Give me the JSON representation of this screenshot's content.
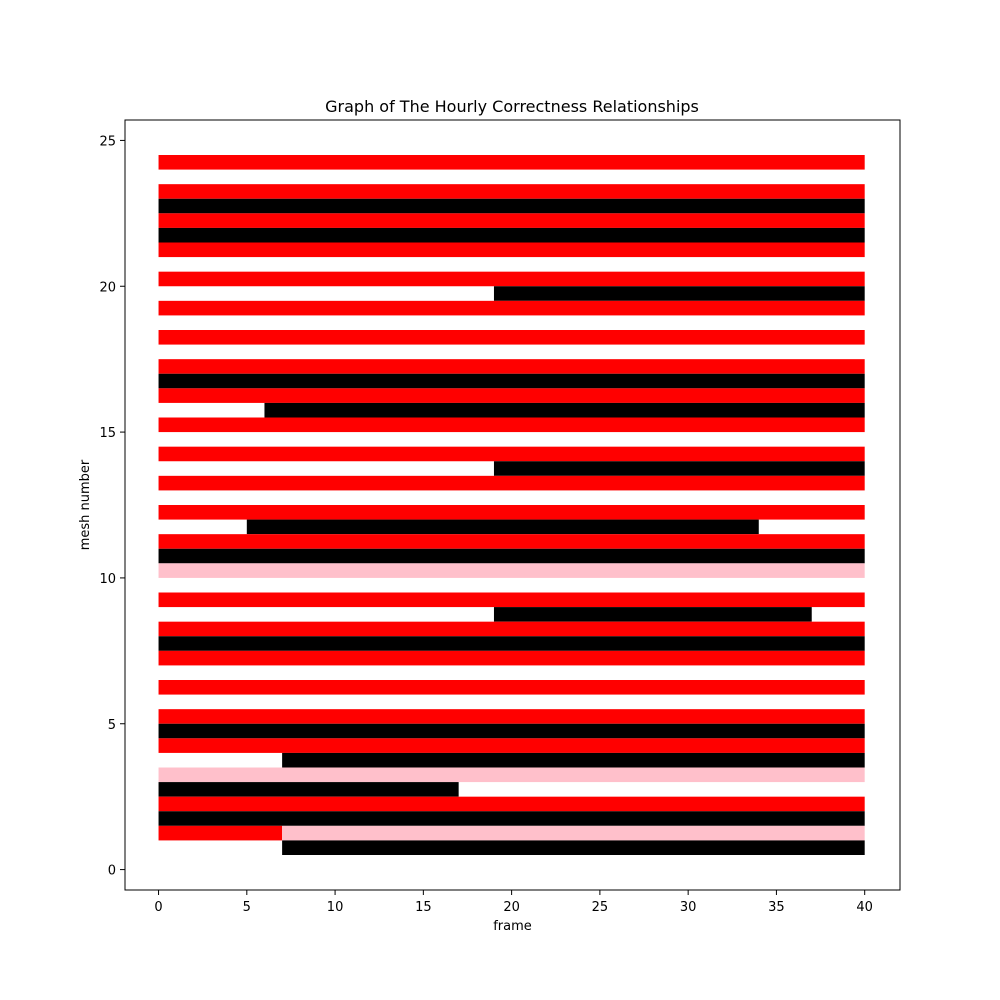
{
  "chart_data": {
    "type": "bar",
    "orientation": "horizontal-segments",
    "title": "Graph of The Hourly Correctness Relationships",
    "xlabel": "frame",
    "ylabel": "mesh number",
    "xlim": [
      -1.9,
      42
    ],
    "ylim": [
      -0.7,
      25.7
    ],
    "xticks": [
      0,
      5,
      10,
      15,
      20,
      25,
      30,
      35,
      40
    ],
    "yticks": [
      0,
      5,
      10,
      15,
      20,
      25
    ],
    "grid": false,
    "bar_height": 0.5,
    "colors": {
      "red": "#ff0000",
      "black": "#000000",
      "pink": "#ffc0cb"
    },
    "segments": [
      {
        "y": 24,
        "start": 0,
        "end": 40,
        "color": "red"
      },
      {
        "y": 23,
        "start": 0,
        "end": 40,
        "color": "red"
      },
      {
        "y": 22.5,
        "start": 0,
        "end": 40,
        "color": "black"
      },
      {
        "y": 22,
        "start": 0,
        "end": 40,
        "color": "red"
      },
      {
        "y": 21.5,
        "start": 0,
        "end": 40,
        "color": "black"
      },
      {
        "y": 21,
        "start": 0,
        "end": 40,
        "color": "red"
      },
      {
        "y": 20,
        "start": 0,
        "end": 40,
        "color": "red"
      },
      {
        "y": 19.5,
        "start": 19,
        "end": 40,
        "color": "black"
      },
      {
        "y": 19,
        "start": 0,
        "end": 40,
        "color": "red"
      },
      {
        "y": 18,
        "start": 0,
        "end": 40,
        "color": "red"
      },
      {
        "y": 17,
        "start": 0,
        "end": 40,
        "color": "red"
      },
      {
        "y": 16.5,
        "start": 0,
        "end": 40,
        "color": "black"
      },
      {
        "y": 16,
        "start": 0,
        "end": 40,
        "color": "red"
      },
      {
        "y": 15.5,
        "start": 6,
        "end": 40,
        "color": "black"
      },
      {
        "y": 15,
        "start": 0,
        "end": 40,
        "color": "red"
      },
      {
        "y": 14,
        "start": 0,
        "end": 40,
        "color": "red"
      },
      {
        "y": 13.5,
        "start": 19,
        "end": 40,
        "color": "black"
      },
      {
        "y": 13,
        "start": 0,
        "end": 40,
        "color": "red"
      },
      {
        "y": 12,
        "start": 0,
        "end": 40,
        "color": "red"
      },
      {
        "y": 11.5,
        "start": 5,
        "end": 34,
        "color": "black"
      },
      {
        "y": 11,
        "start": 0,
        "end": 40,
        "color": "red"
      },
      {
        "y": 10.5,
        "start": 0,
        "end": 40,
        "color": "black"
      },
      {
        "y": 10,
        "start": 0,
        "end": 40,
        "color": "pink"
      },
      {
        "y": 9,
        "start": 0,
        "end": 40,
        "color": "red"
      },
      {
        "y": 8.5,
        "start": 19,
        "end": 37,
        "color": "black"
      },
      {
        "y": 8,
        "start": 0,
        "end": 40,
        "color": "red"
      },
      {
        "y": 7.5,
        "start": 0,
        "end": 40,
        "color": "black"
      },
      {
        "y": 7,
        "start": 0,
        "end": 40,
        "color": "red"
      },
      {
        "y": 6,
        "start": 0,
        "end": 40,
        "color": "red"
      },
      {
        "y": 5,
        "start": 0,
        "end": 40,
        "color": "red"
      },
      {
        "y": 4.5,
        "start": 0,
        "end": 40,
        "color": "black"
      },
      {
        "y": 4,
        "start": 0,
        "end": 40,
        "color": "red"
      },
      {
        "y": 3.5,
        "start": 7,
        "end": 40,
        "color": "black"
      },
      {
        "y": 3,
        "start": 0,
        "end": 40,
        "color": "pink"
      },
      {
        "y": 2.5,
        "start": 0,
        "end": 17,
        "color": "black"
      },
      {
        "y": 2,
        "start": 0,
        "end": 40,
        "color": "red"
      },
      {
        "y": 1.5,
        "start": 0,
        "end": 40,
        "color": "black"
      },
      {
        "y": 1,
        "start": 0,
        "end": 7,
        "color": "red"
      },
      {
        "y": 1,
        "start": 7,
        "end": 40,
        "color": "pink"
      },
      {
        "y": 0.5,
        "start": 7,
        "end": 40,
        "color": "black"
      }
    ]
  }
}
